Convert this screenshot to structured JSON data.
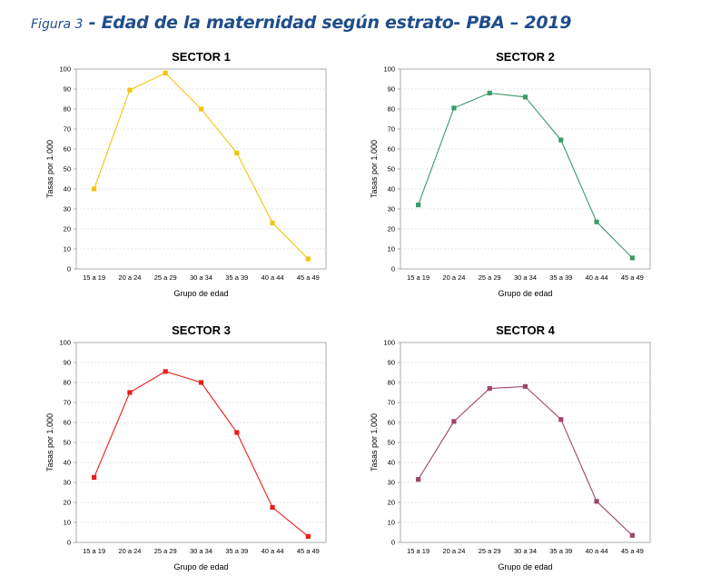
{
  "figure": {
    "label": "Figura 3",
    "title": " - Edad de la maternidad según estrato- PBA – 2019"
  },
  "chart_data": [
    {
      "type": "line",
      "title": "SECTOR 1",
      "color": "#f2c40f",
      "xlabel": "Grupo de edad",
      "ylabel": "Tasas por 1.000",
      "categories": [
        "15 a 19",
        "20 a 24",
        "25 a 29",
        "30 a 34",
        "35 a 39",
        "40 a 44",
        "45 a 49"
      ],
      "values": [
        40,
        89.5,
        98,
        80,
        58,
        23,
        5
      ],
      "ylim": [
        0,
        100
      ],
      "yticks": [
        0,
        10,
        20,
        30,
        40,
        50,
        60,
        70,
        80,
        90,
        100
      ],
      "grid": true
    },
    {
      "type": "line",
      "title": "SECTOR 2",
      "color": "#3a9a6a",
      "xlabel": "Grupo de edad",
      "ylabel": "Tasas por 1.000",
      "categories": [
        "15 a 19",
        "20 a 24",
        "25 a 29",
        "30 a 34",
        "35 a 39",
        "40 a 44",
        "45 a 49"
      ],
      "values": [
        32,
        80.5,
        88,
        86,
        64.5,
        23.5,
        5.5
      ],
      "ylim": [
        0,
        100
      ],
      "yticks": [
        0,
        10,
        20,
        30,
        40,
        50,
        60,
        70,
        80,
        90,
        100
      ],
      "grid": true
    },
    {
      "type": "line",
      "title": "SECTOR 3",
      "color": "#e8201c",
      "xlabel": "Grupo de edad",
      "ylabel": "Tasas por 1.000",
      "categories": [
        "15 a 19",
        "20 a 24",
        "25 a 29",
        "30 a 34",
        "35 a 39",
        "40 a 44",
        "45 a 49"
      ],
      "values": [
        32.5,
        75,
        85.5,
        80,
        55,
        17.5,
        3
      ],
      "ylim": [
        0,
        100
      ],
      "yticks": [
        0,
        10,
        20,
        30,
        40,
        50,
        60,
        70,
        80,
        90,
        100
      ],
      "grid": true
    },
    {
      "type": "line",
      "title": "SECTOR 4",
      "color": "#a1466e",
      "xlabel": "Grupo de edad",
      "ylabel": "Tasas por 1.000",
      "categories": [
        "15 a 19",
        "20 a 24",
        "25 a 29",
        "30 a 34",
        "35 a 39",
        "40 a 44",
        "45 a 49"
      ],
      "values": [
        31.5,
        60.5,
        77,
        78,
        61.5,
        20.5,
        3.5
      ],
      "ylim": [
        0,
        100
      ],
      "yticks": [
        0,
        10,
        20,
        30,
        40,
        50,
        60,
        70,
        80,
        90,
        100
      ],
      "grid": true
    }
  ]
}
